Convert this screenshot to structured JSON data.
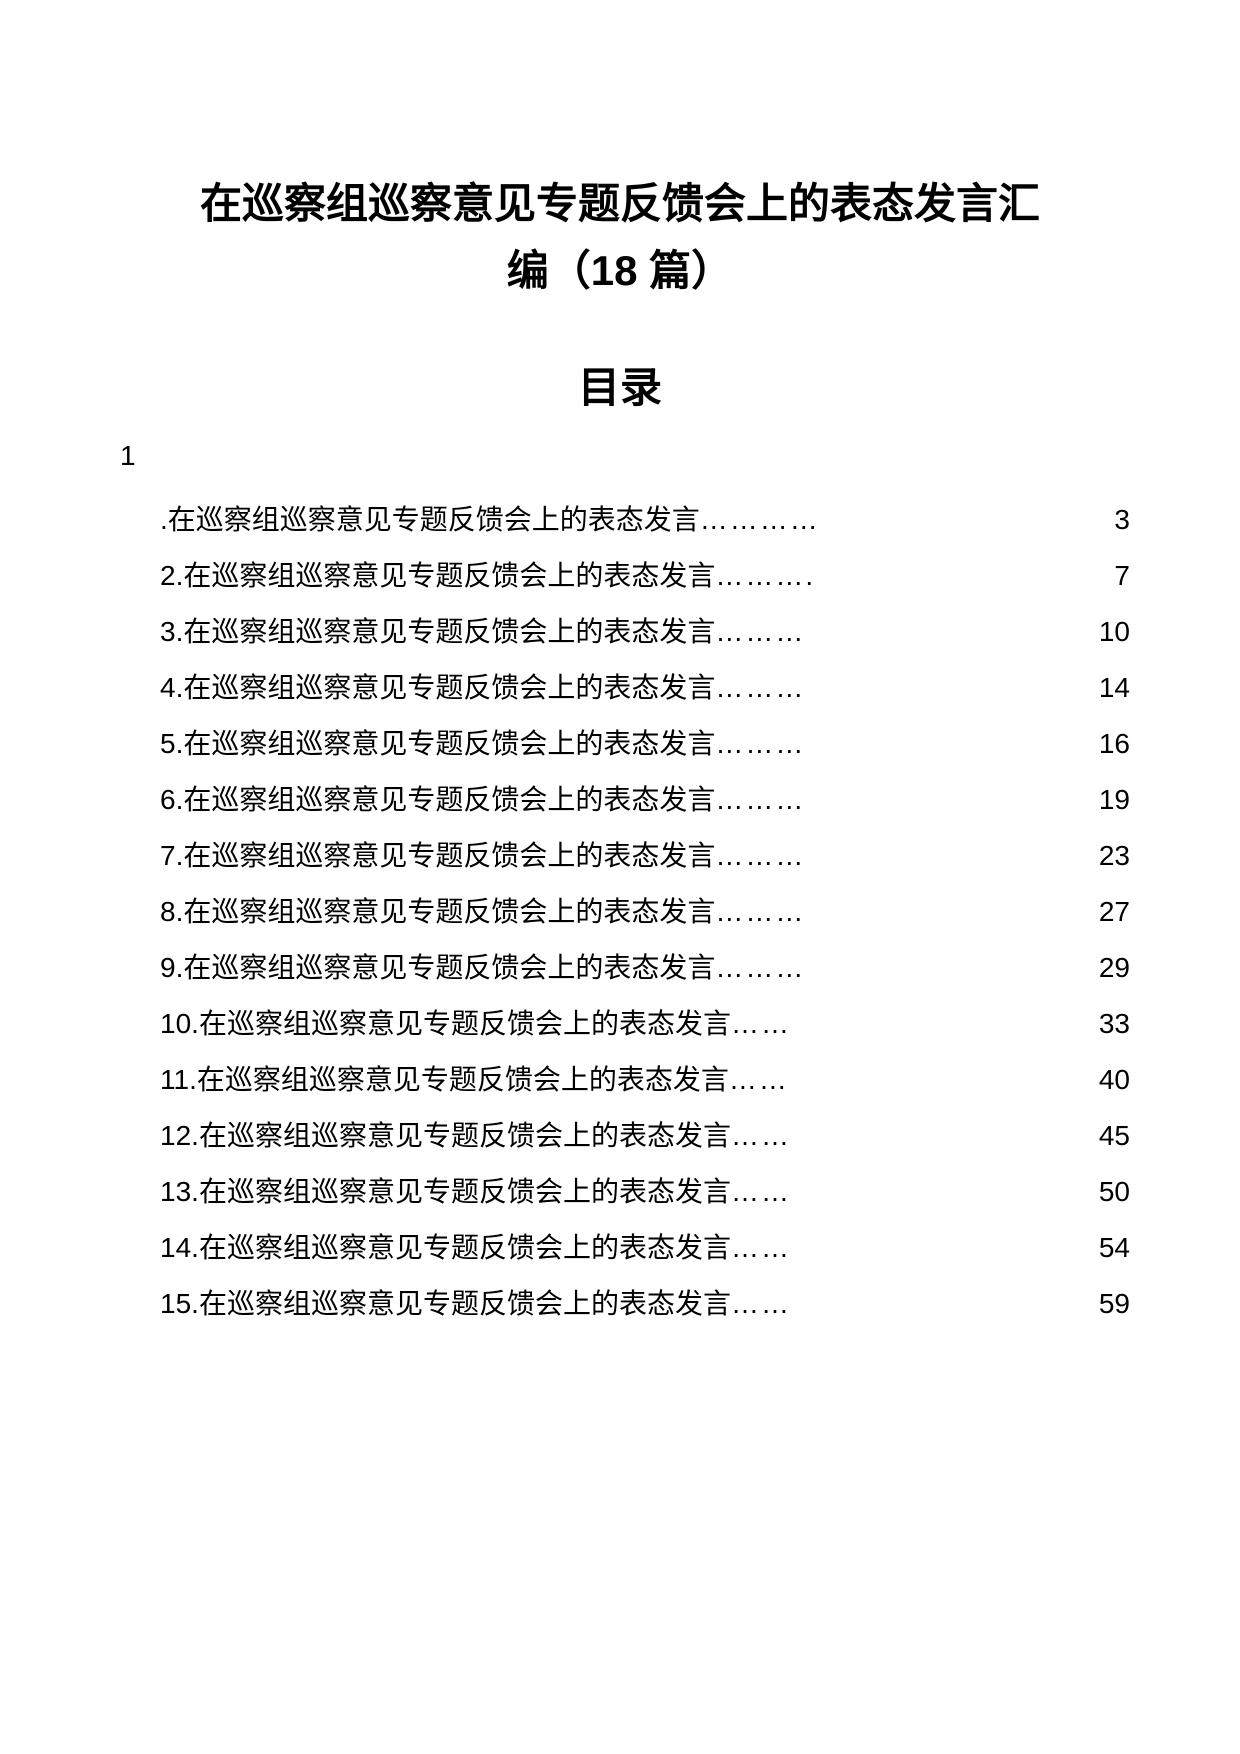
{
  "title_line1": "在巡察组巡察意见专题反馈会上的表态发言汇",
  "title_line2": "编（18 篇）",
  "toc_heading": "目录",
  "first_num": "1",
  "toc": [
    {
      "num": ".",
      "text": "在巡察组巡察意见专题反馈会上的表态发言",
      "dots": "…………",
      "page": "3"
    },
    {
      "num": "2.",
      "text": "在巡察组巡察意见专题反馈会上的表态发言",
      "dots": "……….",
      "page": "7"
    },
    {
      "num": "3.",
      "text": "在巡察组巡察意见专题反馈会上的表态发言",
      "dots": "………",
      "page": "10"
    },
    {
      "num": "4.",
      "text": "在巡察组巡察意见专题反馈会上的表态发言",
      "dots": "………",
      "page": "14"
    },
    {
      "num": "5.",
      "text": "在巡察组巡察意见专题反馈会上的表态发言",
      "dots": "………",
      "page": "16"
    },
    {
      "num": "6.",
      "text": "在巡察组巡察意见专题反馈会上的表态发言",
      "dots": "………",
      "page": "19"
    },
    {
      "num": "7.",
      "text": "在巡察组巡察意见专题反馈会上的表态发言",
      "dots": "………",
      "page": "23"
    },
    {
      "num": "8.",
      "text": "在巡察组巡察意见专题反馈会上的表态发言",
      "dots": "………",
      "page": "27"
    },
    {
      "num": "9.",
      "text": "在巡察组巡察意见专题反馈会上的表态发言",
      "dots": "………",
      "page": "29"
    },
    {
      "num": "10.",
      "text": "在巡察组巡察意见专题反馈会上的表态发言",
      "dots": "……",
      "page": "33"
    },
    {
      "num": "11.",
      "text": "在巡察组巡察意见专题反馈会上的表态发言",
      "dots": "……",
      "page": "40"
    },
    {
      "num": "12.",
      "text": "在巡察组巡察意见专题反馈会上的表态发言",
      "dots": "……",
      "page": "45"
    },
    {
      "num": "13.",
      "text": "在巡察组巡察意见专题反馈会上的表态发言",
      "dots": "……",
      "page": "50"
    },
    {
      "num": "14.",
      "text": "在巡察组巡察意见专题反馈会上的表态发言",
      "dots": "……",
      "page": "54"
    },
    {
      "num": "15.",
      "text": "在巡察组巡察意见专题反馈会上的表态发言",
      "dots": "……",
      "page": "59"
    }
  ]
}
